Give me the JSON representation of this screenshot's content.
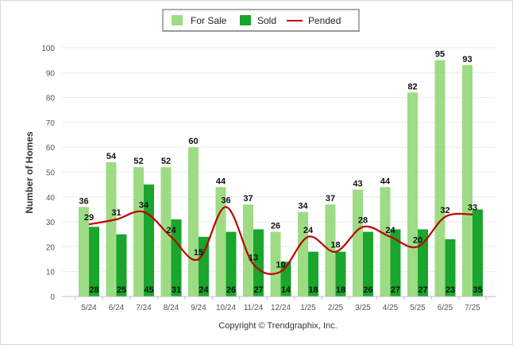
{
  "chart_data": {
    "type": "bar",
    "ylabel": "Number of Homes",
    "ylim": [
      0,
      100
    ],
    "yticks": [
      0,
      10,
      20,
      30,
      40,
      50,
      60,
      70,
      80,
      90,
      100
    ],
    "categories": [
      "5/24",
      "6/24",
      "7/24",
      "8/24",
      "9/24",
      "10/24",
      "11/24",
      "12/24",
      "1/25",
      "2/25",
      "3/25",
      "4/25",
      "5/25",
      "6/25",
      "7/25"
    ],
    "series": [
      {
        "name": "For Sale",
        "type": "bar",
        "color": "#9ddc85",
        "values": [
          36,
          54,
          52,
          52,
          60,
          44,
          37,
          26,
          34,
          37,
          43,
          44,
          82,
          95,
          93
        ]
      },
      {
        "name": "Sold",
        "type": "bar",
        "color": "#1aa52c",
        "values": [
          28,
          25,
          45,
          31,
          24,
          26,
          27,
          14,
          18,
          18,
          26,
          27,
          27,
          23,
          35
        ]
      },
      {
        "name": "Pended",
        "type": "line",
        "color": "#c00000",
        "values": [
          29,
          31,
          34,
          24,
          15,
          36,
          13,
          10,
          24,
          18,
          28,
          24,
          20,
          32,
          33
        ]
      }
    ],
    "legend_position": "top-center",
    "grid": true
  },
  "credit": "Copyright © Trendgraphix, Inc."
}
